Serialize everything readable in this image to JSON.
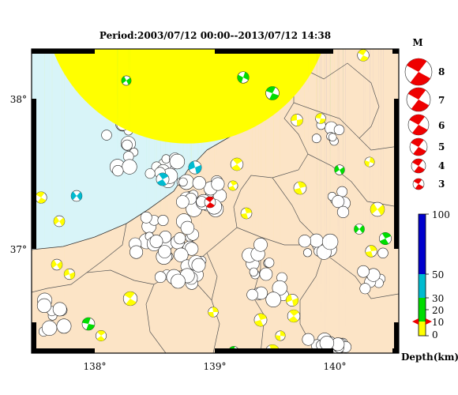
{
  "title": "Period:2003/07/12 00:00--2013/07/12 14:38",
  "axes": {
    "lon_ticks": [
      "138°",
      "139°",
      "140°"
    ],
    "lat_ticks": [
      "38°",
      "37°"
    ]
  },
  "magnitude_legend": {
    "heading": "M",
    "items": [
      "8",
      "7",
      "6",
      "5",
      "4",
      "3"
    ]
  },
  "depth_legend": {
    "label": "Depth(km)",
    "ticks": [
      "100",
      "50",
      "30",
      "20",
      "10",
      "0"
    ],
    "colors": [
      "#ffff00",
      "#00dd00",
      "#00bbd0",
      "#0000cc"
    ]
  },
  "colors": {
    "sea": "#d8f4f8",
    "land": "#fce4c6",
    "highlight": "#ee0000"
  }
}
